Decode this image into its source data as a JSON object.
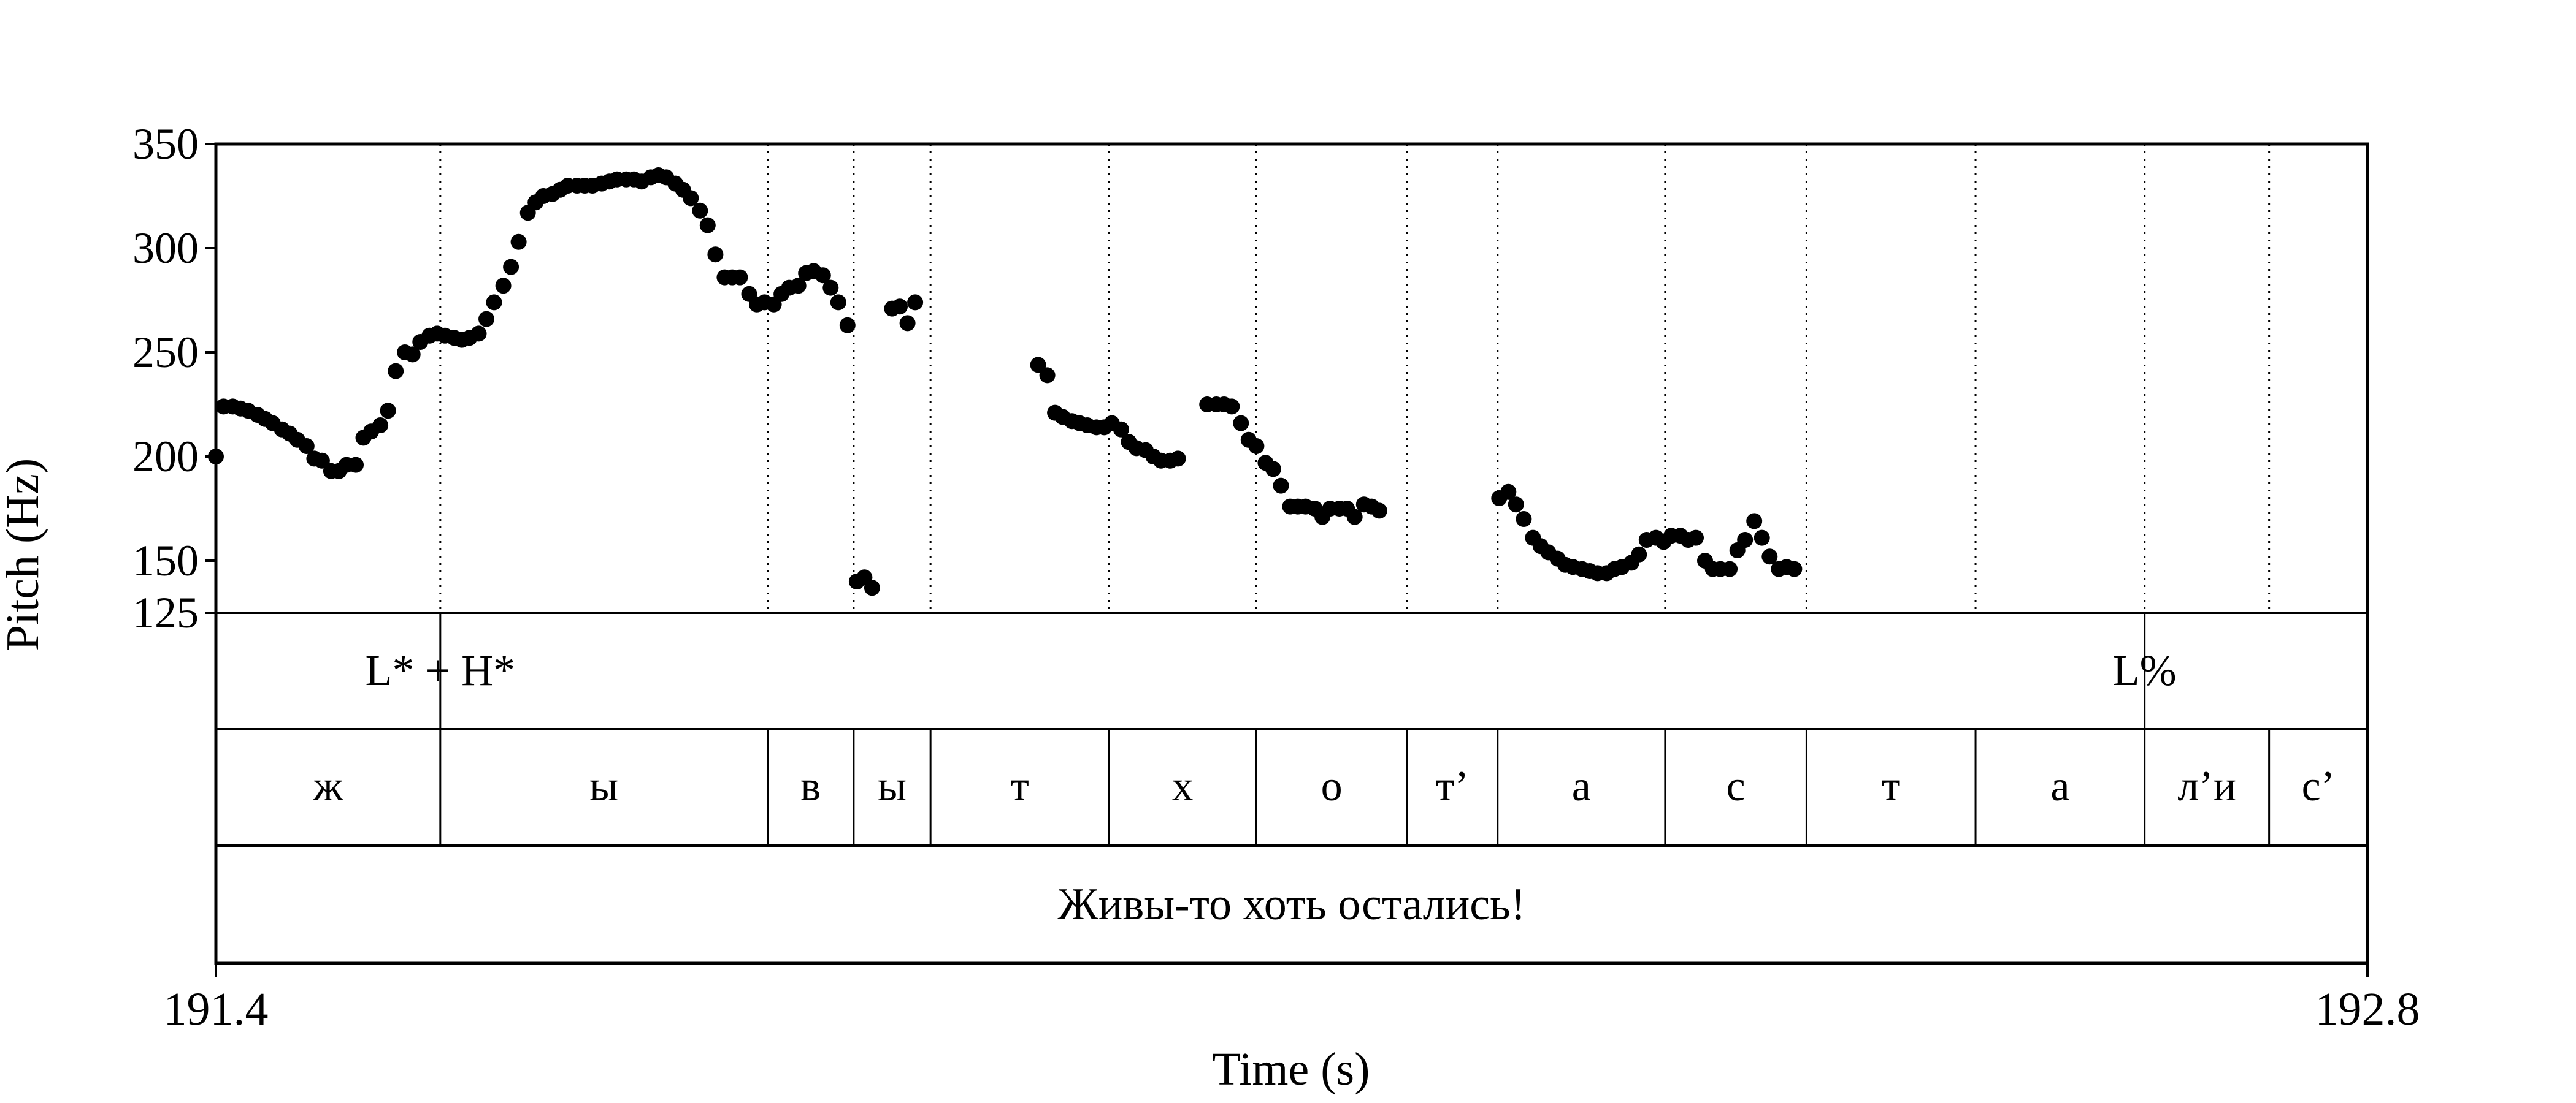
{
  "chart_data": {
    "type": "scatter",
    "xlabel": "Time (s)",
    "ylabel": "Pitch (Hz)",
    "xlim": [
      191.4,
      192.8
    ],
    "ylim": [
      125,
      350
    ],
    "x_ticks": [
      "191.4",
      "192.8"
    ],
    "y_ticks": [
      125,
      150,
      200,
      250,
      300,
      350
    ],
    "series": [
      {
        "points": [
          [
            191.4,
            200
          ],
          [
            191.405,
            224
          ],
          [
            191.411,
            224
          ],
          [
            191.416,
            223
          ],
          [
            191.421,
            222
          ],
          [
            191.427,
            220
          ],
          [
            191.432,
            218
          ],
          [
            191.437,
            216
          ],
          [
            191.443,
            213
          ],
          [
            191.448,
            211
          ],
          [
            191.453,
            208
          ],
          [
            191.459,
            205
          ],
          [
            191.464,
            199
          ],
          [
            191.469,
            198
          ],
          [
            191.475,
            193
          ],
          [
            191.48,
            193
          ],
          [
            191.485,
            196
          ],
          [
            191.491,
            196
          ],
          [
            191.496,
            209
          ],
          [
            191.501,
            212
          ],
          [
            191.507,
            215
          ],
          [
            191.512,
            222
          ],
          [
            191.517,
            241
          ],
          [
            191.523,
            250
          ],
          [
            191.528,
            249
          ],
          [
            191.533,
            255
          ],
          [
            191.539,
            258
          ],
          [
            191.544,
            259
          ],
          [
            191.549,
            258
          ],
          [
            191.555,
            257
          ],
          [
            191.56,
            256
          ],
          [
            191.565,
            257
          ],
          [
            191.571,
            259
          ],
          [
            191.576,
            266
          ],
          [
            191.581,
            274
          ],
          [
            191.587,
            282
          ],
          [
            191.592,
            291
          ],
          [
            191.597,
            303
          ],
          [
            191.603,
            317
          ],
          [
            191.608,
            322
          ],
          [
            191.613,
            325
          ],
          [
            191.619,
            326
          ],
          [
            191.624,
            328
          ],
          [
            191.629,
            330
          ],
          [
            191.635,
            330
          ],
          [
            191.64,
            330
          ],
          [
            191.645,
            330
          ],
          [
            191.651,
            331
          ],
          [
            191.656,
            332
          ],
          [
            191.661,
            333
          ],
          [
            191.667,
            333
          ],
          [
            191.672,
            333
          ],
          [
            191.677,
            332
          ],
          [
            191.683,
            334
          ],
          [
            191.688,
            335
          ],
          [
            191.693,
            334
          ],
          [
            191.699,
            331
          ],
          [
            191.704,
            328
          ],
          [
            191.709,
            324
          ],
          [
            191.715,
            318
          ],
          [
            191.72,
            311
          ],
          [
            191.725,
            297
          ],
          [
            191.731,
            286
          ],
          [
            191.736,
            286
          ],
          [
            191.741,
            286
          ],
          [
            191.747,
            278
          ],
          [
            191.752,
            273
          ],
          [
            191.757,
            274
          ],
          [
            191.763,
            273
          ],
          [
            191.768,
            278
          ],
          [
            191.773,
            281
          ],
          [
            191.779,
            282
          ],
          [
            191.784,
            288
          ],
          [
            191.789,
            289
          ],
          [
            191.795,
            287
          ],
          [
            191.8,
            281
          ],
          [
            191.805,
            274
          ],
          [
            191.811,
            263
          ],
          [
            191.817,
            140
          ],
          [
            191.822,
            142
          ],
          [
            191.827,
            137
          ],
          [
            191.84,
            271
          ],
          [
            191.845,
            272
          ],
          [
            191.85,
            264
          ],
          [
            191.855,
            274
          ],
          [
            191.935,
            244
          ],
          [
            191.941,
            239
          ],
          [
            191.946,
            221
          ],
          [
            191.951,
            219
          ],
          [
            191.957,
            217
          ],
          [
            191.962,
            216
          ],
          [
            191.967,
            215
          ],
          [
            191.973,
            214
          ],
          [
            191.978,
            214
          ],
          [
            191.983,
            216
          ],
          [
            191.989,
            213
          ],
          [
            191.994,
            207
          ],
          [
            191.999,
            204
          ],
          [
            192.005,
            203
          ],
          [
            192.01,
            200
          ],
          [
            192.015,
            198
          ],
          [
            192.021,
            198
          ],
          [
            192.026,
            199
          ],
          [
            192.045,
            225
          ],
          [
            192.051,
            225
          ],
          [
            192.056,
            225
          ],
          [
            192.061,
            224
          ],
          [
            192.067,
            216
          ],
          [
            192.072,
            208
          ],
          [
            192.077,
            205
          ],
          [
            192.083,
            197
          ],
          [
            192.088,
            194
          ],
          [
            192.093,
            186
          ],
          [
            192.099,
            176
          ],
          [
            192.104,
            176
          ],
          [
            192.109,
            176
          ],
          [
            192.115,
            175
          ],
          [
            192.12,
            171
          ],
          [
            192.125,
            175
          ],
          [
            192.131,
            175
          ],
          [
            192.136,
            175
          ],
          [
            192.141,
            171
          ],
          [
            192.147,
            177
          ],
          [
            192.152,
            176
          ],
          [
            192.157,
            174
          ],
          [
            192.235,
            180
          ],
          [
            192.241,
            183
          ],
          [
            192.246,
            177
          ],
          [
            192.251,
            170
          ],
          [
            192.257,
            161
          ],
          [
            192.262,
            157
          ],
          [
            192.267,
            154
          ],
          [
            192.273,
            151
          ],
          [
            192.278,
            148
          ],
          [
            192.283,
            147
          ],
          [
            192.289,
            146
          ],
          [
            192.294,
            145
          ],
          [
            192.299,
            144
          ],
          [
            192.305,
            144
          ],
          [
            192.31,
            146
          ],
          [
            192.315,
            147
          ],
          [
            192.321,
            149
          ],
          [
            192.326,
            153
          ],
          [
            192.331,
            160
          ],
          [
            192.337,
            161
          ],
          [
            192.342,
            159
          ],
          [
            192.347,
            162
          ],
          [
            192.353,
            162
          ],
          [
            192.358,
            160
          ],
          [
            192.363,
            161
          ],
          [
            192.369,
            150
          ],
          [
            192.374,
            146
          ],
          [
            192.379,
            146
          ],
          [
            192.385,
            146
          ],
          [
            192.39,
            155
          ],
          [
            192.395,
            160
          ],
          [
            192.401,
            169
          ],
          [
            192.406,
            161
          ],
          [
            192.411,
            152
          ],
          [
            192.417,
            146
          ],
          [
            192.422,
            147
          ],
          [
            192.427,
            146
          ]
        ]
      }
    ],
    "boundaries": [
      191.546,
      191.759,
      191.815,
      191.865,
      191.981,
      192.077,
      192.175,
      192.234,
      192.343,
      192.435,
      192.545,
      192.655,
      192.736
    ],
    "tiers": {
      "tones": [
        {
          "time": 191.546,
          "label": "L* + H*"
        },
        {
          "time": 192.655,
          "label": "L%"
        }
      ],
      "segments": [
        {
          "start": 191.4,
          "end": 191.546,
          "label": "ж"
        },
        {
          "start": 191.546,
          "end": 191.759,
          "label": "ы"
        },
        {
          "start": 191.759,
          "end": 191.815,
          "label": "в"
        },
        {
          "start": 191.815,
          "end": 191.865,
          "label": "ы"
        },
        {
          "start": 191.865,
          "end": 191.981,
          "label": "т"
        },
        {
          "start": 191.981,
          "end": 192.077,
          "label": "х"
        },
        {
          "start": 192.077,
          "end": 192.175,
          "label": "о"
        },
        {
          "start": 192.175,
          "end": 192.234,
          "label": "т’"
        },
        {
          "start": 192.234,
          "end": 192.343,
          "label": "а"
        },
        {
          "start": 192.343,
          "end": 192.435,
          "label": "с"
        },
        {
          "start": 192.435,
          "end": 192.545,
          "label": "т"
        },
        {
          "start": 192.545,
          "end": 192.655,
          "label": "а"
        },
        {
          "start": 192.655,
          "end": 192.736,
          "label": "л’и"
        },
        {
          "start": 192.736,
          "end": 192.8,
          "label": "с’"
        }
      ],
      "sentence": "Живы-то хоть остались!"
    }
  }
}
